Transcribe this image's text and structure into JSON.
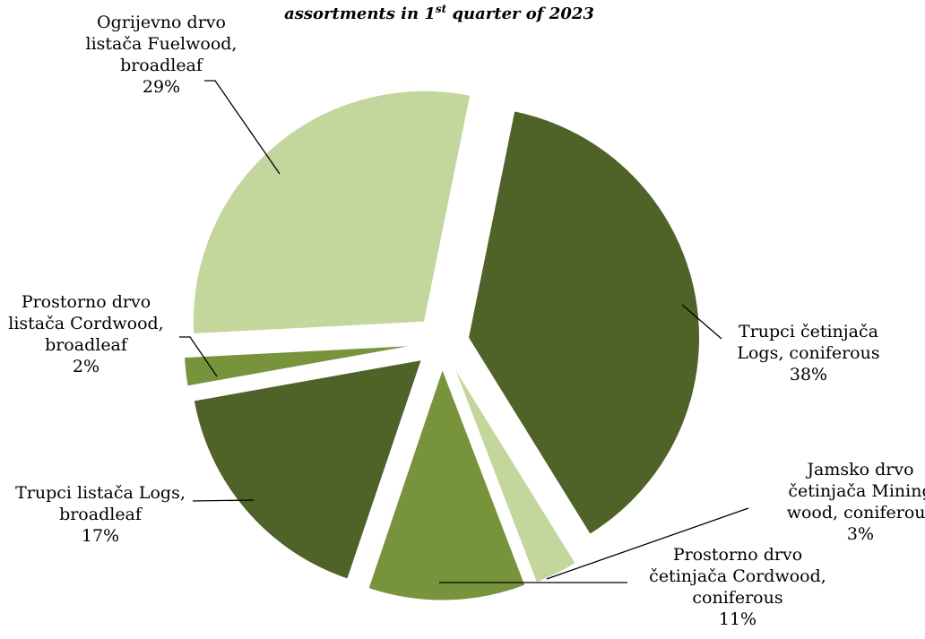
{
  "chart_data": {
    "type": "pie",
    "title_parts": {
      "line_end_text": "assortments in 1",
      "superscript": "st",
      "tail": " quarter of 2023"
    },
    "slices": [
      {
        "label_lines": [
          "Trupci četinjača",
          "Logs, coniferous"
        ],
        "value": 38,
        "pct_text": "38%",
        "color": "#4f6228"
      },
      {
        "label_lines": [
          "Jamsko drvo",
          "četinjača Mining",
          "wood, coniferous"
        ],
        "value": 3,
        "pct_text": "3%",
        "color": "#c3d69b"
      },
      {
        "label_lines": [
          "Prostorno drvo",
          "četinjača Cordwood,",
          "coniferous"
        ],
        "value": 11,
        "pct_text": "11%",
        "color": "#77933c"
      },
      {
        "label_lines": [
          "Trupci listača Logs,",
          "broadleaf"
        ],
        "value": 17,
        "pct_text": "17%",
        "color": "#4f6228"
      },
      {
        "label_lines": [
          "Prostorno drvo",
          "listača Cordwood,",
          "broadleaf"
        ],
        "value": 2,
        "pct_text": "2%",
        "color": "#77933c"
      },
      {
        "label_lines": [
          "Ogrijevno drvo",
          "listača  Fuelwood,",
          "broadleaf"
        ],
        "value": 29,
        "pct_text": "29%",
        "color": "#c3d69b"
      }
    ]
  }
}
